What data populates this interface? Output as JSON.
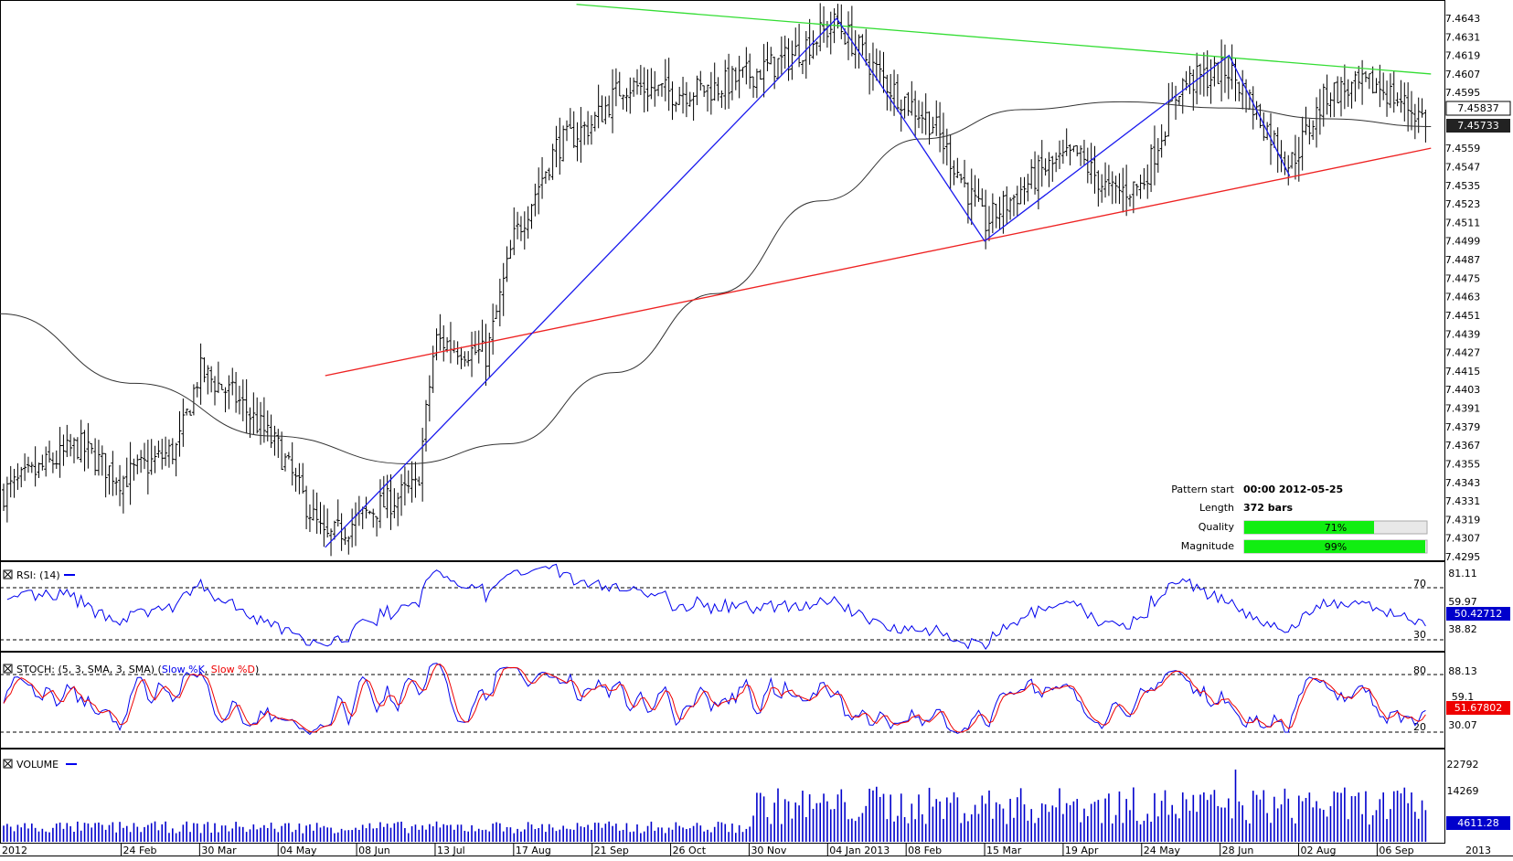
{
  "colors": {
    "upper_trendline": "#33dd33",
    "lower_trendline": "#ee2222",
    "pattern_line": "#1a1aee",
    "moving_average": "#333333",
    "rsi": "#0000ee",
    "stoch_k": "#0000ee",
    "stoch_d": "#ee0000",
    "volume": "#0000cc",
    "quality_fill": "#11ee11",
    "current_price_box": "#222222",
    "rsi_box": "#0000cc",
    "stoch_box": "#ee0000",
    "volume_box": "#0000cc"
  },
  "info": {
    "pattern_start_label": "Pattern start",
    "pattern_start_value": "00:00 2012-05-25",
    "length_label": "Length",
    "length_value": "372 bars",
    "quality_label": "Quality",
    "quality_value": "71%",
    "quality_fraction": 0.71,
    "magnitude_label": "Magnitude",
    "magnitude_value": "99%",
    "magnitude_fraction": 0.99
  },
  "price": {
    "axis_labels": [
      "7.4643",
      "7.4631",
      "7.4619",
      "7.4607",
      "7.4595",
      "7.4559",
      "7.4547",
      "7.4535",
      "7.4523",
      "7.4511",
      "7.4499",
      "7.4487",
      "7.4475",
      "7.4463",
      "7.4451",
      "7.4439",
      "7.4427",
      "7.4415",
      "7.4403",
      "7.4391",
      "7.4379",
      "7.4367",
      "7.4355",
      "7.4343",
      "7.4331",
      "7.4319",
      "7.4307",
      "7.4295"
    ],
    "marker_1": "7.45837",
    "marker_2": "7.45733"
  },
  "rsi": {
    "title": "RSI: (14)",
    "levels": [
      "70",
      "30"
    ],
    "axis_labels": [
      "81.11",
      "59.97",
      "38.82"
    ],
    "current": "50.42712"
  },
  "stoch": {
    "title_prefix": "STOCH: (5, 3, SMA, 3, SMA) (",
    "k_label": "Slow %K",
    "d_label": "Slow %D",
    "title_suffix": ")",
    "levels": [
      "80",
      "20"
    ],
    "axis_labels": [
      "88.13",
      "30.07"
    ],
    "axis_partial": "59.1",
    "current": "51.67802"
  },
  "volume": {
    "title": "VOLUME",
    "axis_labels": [
      "22792",
      "14269"
    ],
    "current": "4611.28"
  },
  "time_axis": {
    "labels": [
      "2012",
      "24 Feb",
      "30 Mar",
      "04 May",
      "08 Jun",
      "13 Jul",
      "17 Aug",
      "21 Sep",
      "26 Oct",
      "30 Nov",
      "04 Jan 2013",
      "08 Feb",
      "15 Mar",
      "19 Apr",
      "24 May",
      "28 Jun",
      "02 Aug",
      "06 Sep",
      "2013"
    ]
  },
  "chart_data": {
    "type": "ohlc",
    "instrument_note": "",
    "price_axis": {
      "min": 7.4295,
      "max": 7.4643
    },
    "last_price": 7.45733,
    "pattern": {
      "kind": "triangle",
      "upper_line": [
        {
          "date": "2012-09-14",
          "price": 7.4652
        },
        {
          "date": "2013-09-30",
          "price": 7.4607
        }
      ],
      "lower_line": [
        {
          "date": "2012-05-25",
          "price": 7.4412
        },
        {
          "date": "2013-09-30",
          "price": 7.4559
        }
      ],
      "zigzag": [
        {
          "date": "2012-05-25",
          "price": 7.4301
        },
        {
          "date": "2013-01-08",
          "price": 7.4643
        },
        {
          "date": "2013-03-15",
          "price": 7.4499
        },
        {
          "date": "2013-07-02",
          "price": 7.4619
        },
        {
          "date": "2013-07-29",
          "price": 7.4541
        }
      ]
    },
    "moving_average": [
      {
        "date": "2012-01-01",
        "price": 7.4452
      },
      {
        "date": "2012-03-01",
        "price": 7.4407
      },
      {
        "date": "2012-05-01",
        "price": 7.4373
      },
      {
        "date": "2012-07-01",
        "price": 7.4355
      },
      {
        "date": "2012-08-15",
        "price": 7.4368
      },
      {
        "date": "2012-10-01",
        "price": 7.4414
      },
      {
        "date": "2012-11-15",
        "price": 7.4465
      },
      {
        "date": "2013-01-01",
        "price": 7.4525
      },
      {
        "date": "2013-02-15",
        "price": 7.4565
      },
      {
        "date": "2013-04-01",
        "price": 7.4584
      },
      {
        "date": "2013-05-15",
        "price": 7.4589
      },
      {
        "date": "2013-07-01",
        "price": 7.4585
      },
      {
        "date": "2013-08-15",
        "price": 7.4578
      },
      {
        "date": "2013-09-30",
        "price": 7.4573
      }
    ],
    "key_prices": [
      {
        "date": "2012-01-01",
        "price": 7.4335
      },
      {
        "date": "2012-02-05",
        "price": 7.4367
      },
      {
        "date": "2012-02-24",
        "price": 7.4345
      },
      {
        "date": "2012-03-20",
        "price": 7.4365
      },
      {
        "date": "2012-03-30",
        "price": 7.4415
      },
      {
        "date": "2012-04-15",
        "price": 7.4398
      },
      {
        "date": "2012-05-04",
        "price": 7.4365
      },
      {
        "date": "2012-05-25",
        "price": 7.4305
      },
      {
        "date": "2012-06-15",
        "price": 7.4325
      },
      {
        "date": "2012-07-05",
        "price": 7.434
      },
      {
        "date": "2012-07-13",
        "price": 7.4435
      },
      {
        "date": "2012-08-05",
        "price": 7.4425
      },
      {
        "date": "2012-08-17",
        "price": 7.45
      },
      {
        "date": "2012-09-05",
        "price": 7.456
      },
      {
        "date": "2012-09-21",
        "price": 7.4575
      },
      {
        "date": "2012-10-05",
        "price": 7.46
      },
      {
        "date": "2012-10-26",
        "price": 7.4595
      },
      {
        "date": "2012-11-15",
        "price": 7.4598
      },
      {
        "date": "2012-12-15",
        "price": 7.4615
      },
      {
        "date": "2013-01-08",
        "price": 7.464
      },
      {
        "date": "2013-02-01",
        "price": 7.4598
      },
      {
        "date": "2013-02-20",
        "price": 7.4575
      },
      {
        "date": "2013-03-15",
        "price": 7.451
      },
      {
        "date": "2013-04-10",
        "price": 7.4545
      },
      {
        "date": "2013-04-25",
        "price": 7.4555
      },
      {
        "date": "2013-05-10",
        "price": 7.453
      },
      {
        "date": "2013-05-24",
        "price": 7.4535
      },
      {
        "date": "2013-06-10",
        "price": 7.46
      },
      {
        "date": "2013-07-02",
        "price": 7.461
      },
      {
        "date": "2013-07-29",
        "price": 7.4548
      },
      {
        "date": "2013-08-15",
        "price": 7.4595
      },
      {
        "date": "2013-09-06",
        "price": 7.46
      },
      {
        "date": "2013-09-30",
        "price": 7.4575
      }
    ],
    "rsi": {
      "range": [
        18,
        88
      ],
      "levels": [
        70,
        30
      ],
      "last": 50.42712
    },
    "stoch": {
      "range": [
        12,
        92
      ],
      "levels": [
        80,
        20
      ],
      "last": 51.67802
    },
    "volume": {
      "max": 22792,
      "last": 4611.28
    }
  }
}
